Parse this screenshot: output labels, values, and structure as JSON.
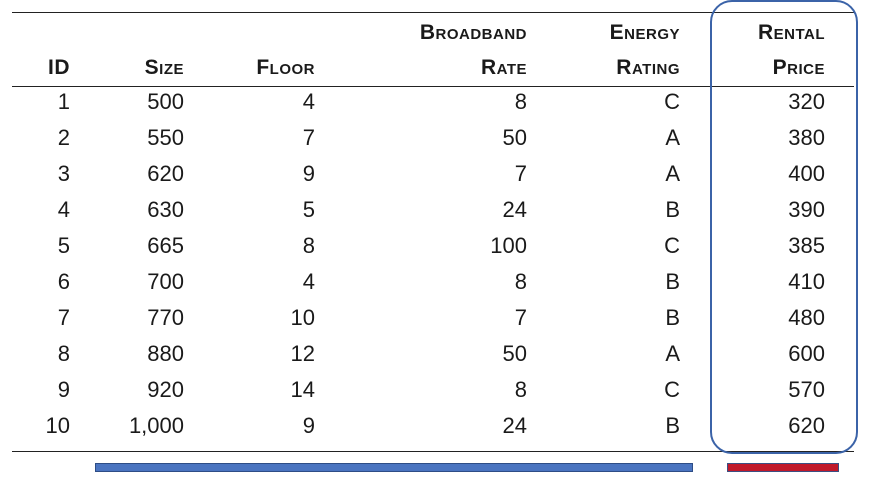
{
  "table": {
    "headers": {
      "id": "ID",
      "size": "Size",
      "floor": "Floor",
      "broadband_line1": "Broadband",
      "broadband_line2": "Rate",
      "energy_line1": "Energy",
      "energy_line2": "Rating",
      "rental_line1": "Rental",
      "rental_line2": "Price"
    },
    "rows": [
      {
        "id": "1",
        "size": "500",
        "floor": "4",
        "broadband": "8",
        "energy": "C",
        "price": "320"
      },
      {
        "id": "2",
        "size": "550",
        "floor": "7",
        "broadband": "50",
        "energy": "A",
        "price": "380"
      },
      {
        "id": "3",
        "size": "620",
        "floor": "9",
        "broadband": "7",
        "energy": "A",
        "price": "400"
      },
      {
        "id": "4",
        "size": "630",
        "floor": "5",
        "broadband": "24",
        "energy": "B",
        "price": "390"
      },
      {
        "id": "5",
        "size": "665",
        "floor": "8",
        "broadband": "100",
        "energy": "C",
        "price": "385"
      },
      {
        "id": "6",
        "size": "700",
        "floor": "4",
        "broadband": "8",
        "energy": "B",
        "price": "410"
      },
      {
        "id": "7",
        "size": "770",
        "floor": "10",
        "broadband": "7",
        "energy": "B",
        "price": "480"
      },
      {
        "id": "8",
        "size": "880",
        "floor": "12",
        "broadband": "50",
        "energy": "A",
        "price": "600"
      },
      {
        "id": "9",
        "size": "920",
        "floor": "14",
        "broadband": "8",
        "energy": "C",
        "price": "570"
      },
      {
        "id": "10",
        "size": "1,000",
        "floor": "9",
        "broadband": "24",
        "energy": "B",
        "price": "620"
      }
    ]
  },
  "colors": {
    "highlight_border": "#3b63a8",
    "features_bar": "#4a74c0",
    "target_bar": "#c0192b"
  }
}
